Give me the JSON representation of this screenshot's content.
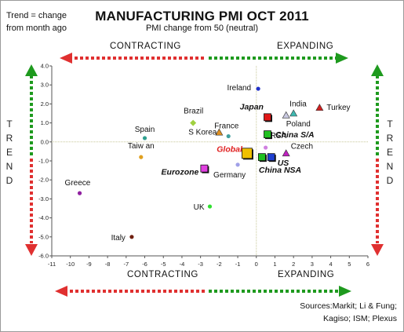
{
  "header": {
    "note_line1": "Trend = change",
    "note_line2": "from month ago",
    "title": "MANUFACTURING PMI OCT 2011",
    "subtitle": "PMI change from 50 (neutral)"
  },
  "annotations": {
    "contracting_top": "CONTRACTING",
    "expanding_top": "EXPANDING",
    "contracting_bottom": "CONTRACTING",
    "expanding_bottom": "EXPANDING",
    "trend_left": [
      "T",
      "R",
      "E",
      "N",
      "D"
    ],
    "trend_right": [
      "T",
      "R",
      "E",
      "N",
      "D"
    ],
    "sources": [
      "Sources:Markit; Li & Fung;",
      "Kagiso; ISM; Plexus"
    ]
  },
  "colors": {
    "arrow_red": "#e03030",
    "arrow_green": "#1e9a1e",
    "axis": "#555555",
    "guide": "#c9c99a"
  },
  "chart_data": {
    "type": "scatter",
    "xlim": [
      -11,
      6
    ],
    "ylim": [
      -6,
      4
    ],
    "xticks": [
      "-11",
      "-10",
      "-9",
      "-8",
      "-7",
      "-6",
      "-5",
      "-4",
      "-3",
      "-2",
      "-1",
      "0",
      "1",
      "2",
      "3",
      "4",
      "5",
      "6"
    ],
    "yticks": [
      "4.0",
      "3.0",
      "2.0",
      "1.0",
      "0.0",
      "-1.0",
      "-2.0",
      "-3.0",
      "-4.0",
      "-5.0",
      "-6.0"
    ],
    "grid": false,
    "points": [
      {
        "label": "Ireland",
        "x": 0.1,
        "y": 2.8,
        "marker": "circle",
        "color": "#2030c8"
      },
      {
        "label": "India",
        "x": 2.0,
        "y": 1.5,
        "marker": "triangle",
        "color": "#40b8b0"
      },
      {
        "label": "Turkey",
        "x": 3.4,
        "y": 1.8,
        "marker": "triangle",
        "color": "#d02020"
      },
      {
        "label": "Japan",
        "x": 0.6,
        "y": 1.3,
        "marker": "square",
        "color": "#e01818"
      },
      {
        "label": "Poland",
        "x": 1.6,
        "y": 1.4,
        "marker": "triangle",
        "color": "#c8c8e0"
      },
      {
        "label": "China S/A",
        "x": 0.6,
        "y": 0.4,
        "marker": "square",
        "color": "#20c020"
      },
      {
        "label": "Brazil",
        "x": -3.4,
        "y": 1.0,
        "marker": "diamond",
        "color": "#a0d040"
      },
      {
        "label": "France",
        "x": -1.5,
        "y": 0.3,
        "marker": "circle",
        "color": "#40a0a0"
      },
      {
        "label": "S Korea",
        "x": -2.0,
        "y": 0.5,
        "marker": "triangle",
        "color": "#e09020"
      },
      {
        "label": "Spain",
        "x": -6.0,
        "y": 0.2,
        "marker": "circle",
        "color": "#30a090"
      },
      {
        "label": "Taiwan",
        "x": -6.2,
        "y": -0.8,
        "marker": "circle",
        "color": "#e0a020"
      },
      {
        "label": "RSA",
        "x": 0.5,
        "y": -0.3,
        "marker": "circle",
        "color": "#d080e0"
      },
      {
        "label": "Czech",
        "x": 1.6,
        "y": -0.6,
        "marker": "triangle",
        "color": "#c020c0"
      },
      {
        "label": "Global",
        "x": -0.5,
        "y": -0.6,
        "marker": "square",
        "color": "#f0c000"
      },
      {
        "label": "US",
        "x": 0.8,
        "y": -0.8,
        "marker": "square",
        "color": "#2040d0"
      },
      {
        "label": "China NSA",
        "x": 0.3,
        "y": -0.8,
        "marker": "square",
        "color": "#20c020"
      },
      {
        "label": "Germany",
        "x": -1.0,
        "y": -1.2,
        "marker": "circle",
        "color": "#a0a0e8"
      },
      {
        "label": "Eurozone",
        "x": -2.8,
        "y": -1.4,
        "marker": "square",
        "color": "#e040e0"
      },
      {
        "label": "Greece",
        "x": -9.5,
        "y": -2.7,
        "marker": "circle",
        "color": "#9020a0"
      },
      {
        "label": "UK",
        "x": -2.5,
        "y": -3.4,
        "marker": "circle",
        "color": "#30e030"
      },
      {
        "label": "Italy",
        "x": -6.7,
        "y": -5.0,
        "marker": "circle",
        "color": "#702010"
      }
    ],
    "point_labels": [
      {
        "text": "Ireland",
        "of": "Ireland",
        "weight": "normal",
        "color": "#111111"
      },
      {
        "text": "India",
        "of": "India",
        "weight": "normal",
        "color": "#111111"
      },
      {
        "text": "Turkey",
        "of": "Turkey",
        "weight": "normal",
        "color": "#111111"
      },
      {
        "text": "Japan",
        "of": "Japan",
        "weight": "bold",
        "color": "#111111"
      },
      {
        "text": "Poland",
        "of": "Poland",
        "weight": "normal",
        "color": "#111111"
      },
      {
        "text": "China S/A",
        "of": "China S/A",
        "weight": "bold",
        "color": "#111111"
      },
      {
        "text": "Brazil",
        "of": "Brazil",
        "weight": "normal",
        "color": "#111111"
      },
      {
        "text": "France",
        "of": "France",
        "weight": "normal",
        "color": "#111111"
      },
      {
        "text": "S Korea",
        "of": "S Korea",
        "weight": "normal",
        "color": "#111111"
      },
      {
        "text": "Spain",
        "of": "Spain",
        "weight": "normal",
        "color": "#111111"
      },
      {
        "text": "Taiw an",
        "of": "Taiwan",
        "weight": "normal",
        "color": "#111111"
      },
      {
        "text": "RSA",
        "of": "RSA",
        "weight": "normal",
        "color": "#111111"
      },
      {
        "text": "Czech",
        "of": "Czech",
        "weight": "normal",
        "color": "#111111"
      },
      {
        "text": "Global",
        "of": "Global",
        "weight": "bold",
        "color": "#e02020"
      },
      {
        "text": "US",
        "of": "US",
        "weight": "bold",
        "color": "#111111"
      },
      {
        "text": "China NSA",
        "of": "China NSA",
        "weight": "bold",
        "color": "#111111"
      },
      {
        "text": "Germany",
        "of": "Germany",
        "weight": "normal",
        "color": "#111111"
      },
      {
        "text": "Eurozone",
        "of": "Eurozone",
        "weight": "bold",
        "color": "#111111"
      },
      {
        "text": "Greece",
        "of": "Greece",
        "weight": "normal",
        "color": "#111111"
      },
      {
        "text": "UK",
        "of": "UK",
        "weight": "normal",
        "color": "#111111"
      },
      {
        "text": "Italy",
        "of": "Italy",
        "weight": "normal",
        "color": "#111111"
      }
    ]
  }
}
